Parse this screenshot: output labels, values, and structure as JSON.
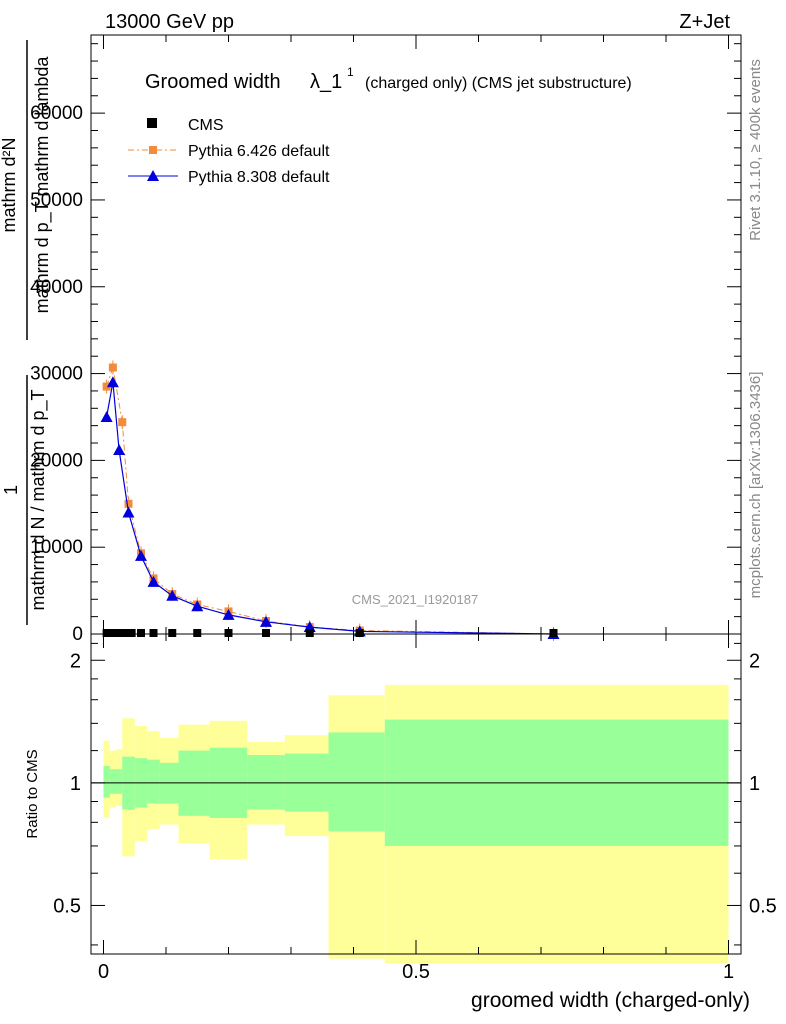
{
  "header": {
    "left": "13000 GeV pp",
    "right": "Z+Jet"
  },
  "side_labels": {
    "rivet": "Rivet 3.1.10, ≥ 400k events",
    "mcplots": "mcplots.cern.ch [arXiv:1306.3436]"
  },
  "watermark": "CMS_2021_I1920187",
  "chart_data": [
    {
      "type": "line",
      "title_main": "Groomed width",
      "title_lambda": "λ_1",
      "title_sup": "1",
      "title_suffix": "(charged only) (CMS jet substructure)",
      "ylabel_lines": [
        "mathrm d²N",
        "mathrm d p_T mathrm d lambda",
        "1",
        "mathrm d N / mathrm d p_T"
      ],
      "ylabel_raw": "1/(mathrm d N / mathrm d p_T) mathrm d²N/(mathrm d p_T mathrm d lambda)",
      "xlim": [
        -0.02,
        1.02
      ],
      "ylim": [
        0,
        69000
      ],
      "yticks": [
        0,
        10000,
        20000,
        30000,
        40000,
        50000,
        60000
      ],
      "ytick_labels": [
        "0",
        "10000",
        "20000",
        "30000",
        "40000",
        "50000",
        "60000"
      ],
      "legend": [
        "CMS",
        "Pythia 6.426 default",
        "Pythia 8.308 default"
      ],
      "legend_position": "top-left",
      "series": [
        {
          "name": "CMS",
          "color": "#000000",
          "marker": "square",
          "x": [
            0.005,
            0.015,
            0.025,
            0.035,
            0.045,
            0.06,
            0.08,
            0.11,
            0.15,
            0.2,
            0.26,
            0.33,
            0.41,
            0.72
          ],
          "y": [
            0,
            0,
            0,
            0,
            0,
            0,
            0,
            0,
            0,
            0,
            0,
            0,
            0,
            0
          ]
        },
        {
          "name": "Pythia 6.426 default",
          "color": "#f28c3c",
          "marker": "square",
          "x": [
            0.005,
            0.015,
            0.03,
            0.04,
            0.06,
            0.08,
            0.11,
            0.15,
            0.2,
            0.26,
            0.33,
            0.41,
            0.72
          ],
          "y": [
            28500,
            30700,
            24400,
            15000,
            9300,
            6400,
            4600,
            3400,
            2600,
            1500,
            800,
            400,
            0
          ]
        },
        {
          "name": "Pythia 8.308 default",
          "color": "#0000dd",
          "marker": "triangle",
          "x": [
            0.005,
            0.015,
            0.025,
            0.04,
            0.06,
            0.08,
            0.11,
            0.15,
            0.2,
            0.26,
            0.33,
            0.41,
            0.72
          ],
          "y": [
            25000,
            29000,
            21200,
            14000,
            9000,
            6000,
            4400,
            3200,
            2200,
            1400,
            800,
            300,
            0
          ]
        }
      ]
    },
    {
      "type": "area",
      "ylabel": "Ratio to CMS",
      "xlabel": "groomed width (charged-only)",
      "xlim": [
        -0.02,
        1.02
      ],
      "ylim": [
        0.38,
        2.32
      ],
      "yscale": "log",
      "yticks": [
        0.5,
        1,
        2
      ],
      "ytick_labels": [
        "0.5",
        "1",
        "2"
      ],
      "xticks": [
        0,
        0.5,
        1
      ],
      "xtick_labels": [
        "0",
        "0.5",
        "1"
      ],
      "reference_line": 1,
      "bands": [
        {
          "name": "outer uncertainty",
          "color": "#ffff99",
          "edges": [
            0,
            0.01,
            0.02,
            0.03,
            0.05,
            0.07,
            0.09,
            0.12,
            0.17,
            0.23,
            0.29,
            0.36,
            0.45,
            1.0
          ],
          "low": [
            0.82,
            0.87,
            0.88,
            0.66,
            0.72,
            0.77,
            0.79,
            0.71,
            0.65,
            0.79,
            0.74,
            0.37,
            0.36,
            0.36
          ],
          "high": [
            1.27,
            1.2,
            1.21,
            1.44,
            1.38,
            1.34,
            1.29,
            1.39,
            1.42,
            1.26,
            1.31,
            1.64,
            1.74,
            1.74
          ]
        },
        {
          "name": "inner uncertainty",
          "color": "#99ff99",
          "edges": [
            0,
            0.01,
            0.02,
            0.03,
            0.05,
            0.07,
            0.09,
            0.12,
            0.17,
            0.23,
            0.29,
            0.36,
            0.45,
            1.0
          ],
          "low": [
            0.92,
            0.94,
            0.94,
            0.86,
            0.87,
            0.89,
            0.89,
            0.83,
            0.82,
            0.86,
            0.85,
            0.76,
            0.7,
            0.7
          ],
          "high": [
            1.1,
            1.08,
            1.08,
            1.16,
            1.15,
            1.14,
            1.12,
            1.2,
            1.22,
            1.17,
            1.18,
            1.33,
            1.43,
            1.43
          ]
        }
      ]
    }
  ]
}
